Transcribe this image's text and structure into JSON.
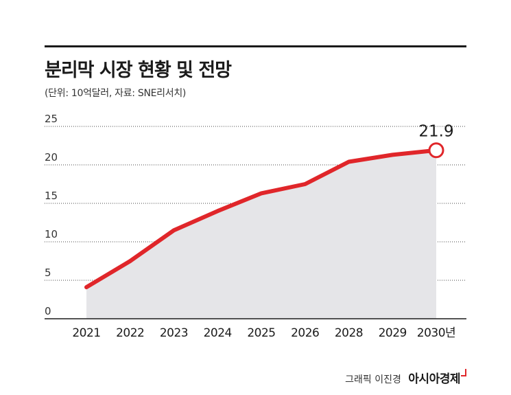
{
  "title": "분리막 시장 현황 및 전망",
  "subtitle": "(단위: 10억달러, 자료: SNE리서치)",
  "credit": {
    "artist": "그래픽 이진경",
    "brand": "아시아경제"
  },
  "colors": {
    "line": "#e0262a",
    "area": "#e5e5e8",
    "grid": "#444444",
    "text": "#1a1a1a"
  },
  "chart_data": {
    "type": "area",
    "categories": [
      "2021",
      "2022",
      "2023",
      "2024",
      "2025",
      "2026",
      "2028",
      "2029",
      "2030년"
    ],
    "values": [
      4.1,
      7.5,
      11.5,
      14.0,
      16.3,
      17.5,
      20.4,
      21.3,
      21.9
    ],
    "highlight": {
      "index": 8,
      "label": "21.9"
    },
    "yticks": [
      0,
      5,
      10,
      15,
      20,
      25
    ],
    "ylim": [
      0,
      25
    ],
    "grid": "horizontal-dotted"
  }
}
